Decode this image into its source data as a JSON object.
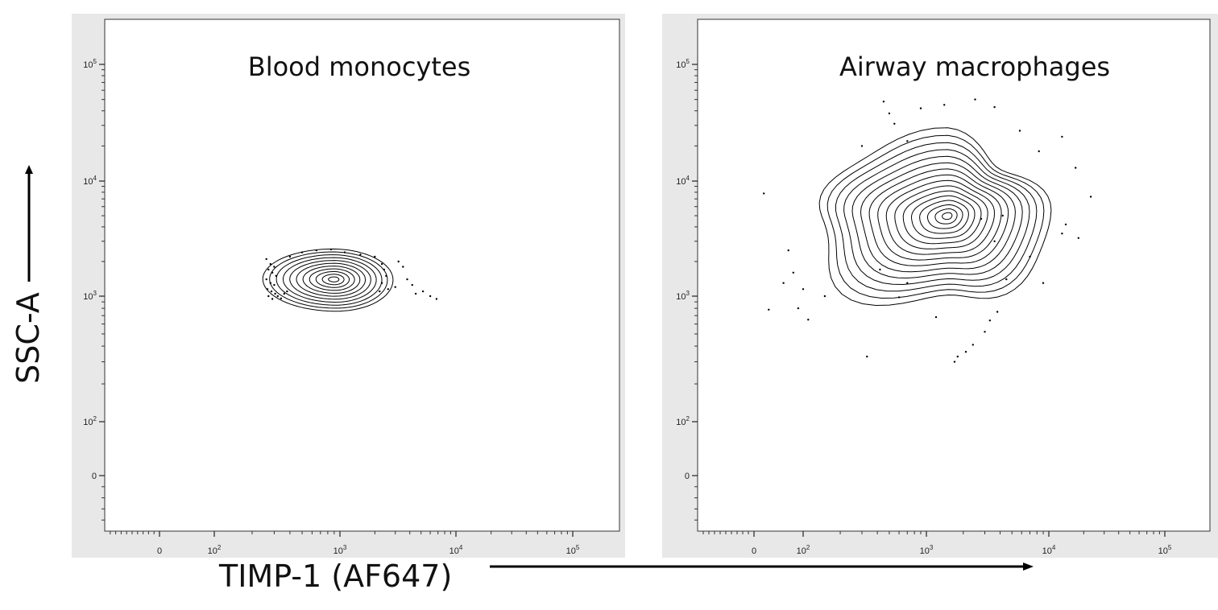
{
  "chart_data": [
    {
      "type": "contour",
      "title": "Blood monocytes",
      "xscale": "biexponential",
      "yscale": "biexponential",
      "x_ticks": [
        {
          "value": 0,
          "label": "0"
        },
        {
          "value": 100,
          "label": "10",
          "exp": "2"
        },
        {
          "value": 1000,
          "label": "10",
          "exp": "3"
        },
        {
          "value": 10000,
          "label": "10",
          "exp": "4"
        },
        {
          "value": 100000,
          "label": "10",
          "exp": "5"
        }
      ],
      "y_ticks": [
        {
          "value": 0,
          "label": "0"
        },
        {
          "value": 100,
          "label": "10",
          "exp": "2"
        },
        {
          "value": 1000,
          "label": "10",
          "exp": "3"
        },
        {
          "value": 10000,
          "label": "10",
          "exp": "4"
        },
        {
          "value": 100000,
          "label": "10",
          "exp": "5"
        }
      ],
      "population_center": {
        "x": 900,
        "y": 1400
      },
      "population_x_range": [
        250,
        2800
      ],
      "population_y_range": [
        750,
        2600
      ],
      "contour_levels": 11,
      "outliers": [
        [
          260,
          2100
        ],
        [
          280,
          1900
        ],
        [
          300,
          1800
        ],
        [
          270,
          1700
        ],
        [
          290,
          1600
        ],
        [
          310,
          1500
        ],
        [
          260,
          1400
        ],
        [
          280,
          1300
        ],
        [
          300,
          1250
        ],
        [
          265,
          1150
        ],
        [
          285,
          1100
        ],
        [
          305,
          1050
        ],
        [
          270,
          1000
        ],
        [
          290,
          950
        ],
        [
          320,
          1000
        ],
        [
          340,
          960
        ],
        [
          360,
          1050
        ],
        [
          380,
          1100
        ],
        [
          400,
          2200
        ],
        [
          500,
          2400
        ],
        [
          650,
          2500
        ],
        [
          850,
          2550
        ],
        [
          1100,
          2400
        ],
        [
          1500,
          2300
        ],
        [
          2000,
          2200
        ],
        [
          2300,
          1900
        ],
        [
          2400,
          1700
        ],
        [
          2500,
          1500
        ],
        [
          2300,
          1300
        ],
        [
          2600,
          1150
        ],
        [
          2200,
          1100
        ],
        [
          3000,
          1200
        ],
        [
          3500,
          1800
        ],
        [
          3800,
          1400
        ],
        [
          4500,
          1050
        ],
        [
          5200,
          1100
        ],
        [
          6000,
          1000
        ],
        [
          6800,
          950
        ],
        [
          3200,
          2000
        ],
        [
          4200,
          1250
        ]
      ]
    },
    {
      "type": "contour",
      "title": "Airway macrophages",
      "xscale": "biexponential",
      "yscale": "biexponential",
      "x_ticks": [
        {
          "value": 0,
          "label": "0"
        },
        {
          "value": 100,
          "label": "10",
          "exp": "2"
        },
        {
          "value": 1000,
          "label": "10",
          "exp": "3"
        },
        {
          "value": 10000,
          "label": "10",
          "exp": "4"
        },
        {
          "value": 100000,
          "label": "10",
          "exp": "5"
        }
      ],
      "y_ticks": [
        {
          "value": 0,
          "label": "0"
        },
        {
          "value": 100,
          "label": "10",
          "exp": "2"
        },
        {
          "value": 1000,
          "label": "10",
          "exp": "3"
        },
        {
          "value": 10000,
          "label": "10",
          "exp": "4"
        },
        {
          "value": 100000,
          "label": "10",
          "exp": "5"
        }
      ],
      "population_center": {
        "x": 1500,
        "y": 5000
      },
      "population_x_range": [
        120,
        9000
      ],
      "population_y_range": [
        800,
        23000
      ],
      "contour_levels": 16,
      "outliers": [
        [
          20,
          7800
        ],
        [
          30,
          780
        ],
        [
          80,
          1600
        ],
        [
          70,
          2500
        ],
        [
          60,
          1300
        ],
        [
          100,
          1150
        ],
        [
          110,
          650
        ],
        [
          90,
          800
        ],
        [
          150,
          1000
        ],
        [
          300,
          20000
        ],
        [
          450,
          48000
        ],
        [
          500,
          38000
        ],
        [
          550,
          31000
        ],
        [
          700,
          22000
        ],
        [
          900,
          42000
        ],
        [
          1400,
          45000
        ],
        [
          2500,
          50000
        ],
        [
          3600,
          43000
        ],
        [
          5800,
          27000
        ],
        [
          8300,
          18000
        ],
        [
          13000,
          24000
        ],
        [
          17000,
          13000
        ],
        [
          23000,
          7300
        ],
        [
          18000,
          3200
        ],
        [
          14000,
          4200
        ],
        [
          13000,
          3500
        ],
        [
          9000,
          1300
        ],
        [
          7000,
          2200
        ],
        [
          4500,
          1400
        ],
        [
          3800,
          750
        ],
        [
          3300,
          640
        ],
        [
          3000,
          520
        ],
        [
          2400,
          410
        ],
        [
          2100,
          360
        ],
        [
          1800,
          330
        ],
        [
          1700,
          300
        ],
        [
          1200,
          680
        ],
        [
          700,
          1300
        ],
        [
          600,
          980
        ],
        [
          330,
          330
        ],
        [
          420,
          1700
        ],
        [
          4200,
          5000
        ],
        [
          2800,
          4700
        ],
        [
          3600,
          3000
        ]
      ]
    }
  ],
  "axes": {
    "xlabel": "TIMP-1 (AF647)",
    "ylabel": "SSC-A"
  },
  "colors": {
    "panel_frame": "#e8e8e8",
    "contour": "#000000"
  }
}
